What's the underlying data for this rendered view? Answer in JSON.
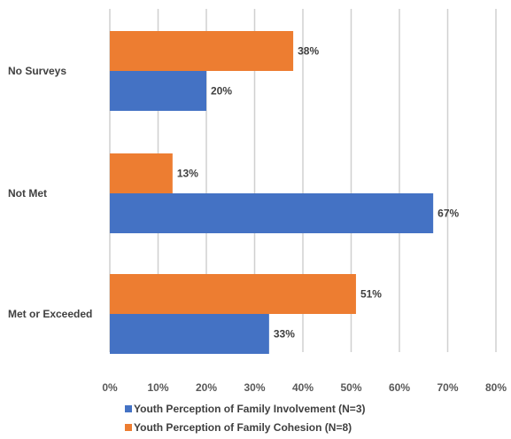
{
  "chart_data": {
    "type": "bar",
    "orientation": "horizontal",
    "title": "",
    "xlabel": "",
    "ylabel": "",
    "categories": [
      "No Surveys",
      "Not Met",
      "Met or Exceeded"
    ],
    "series": [
      {
        "name": "Youth Perception of Family Cohesion (N=8)",
        "values": [
          38,
          13,
          51
        ],
        "color": "#ED7D31"
      },
      {
        "name": "Youth Perception of Family Involvement (N=3)",
        "values": [
          20,
          67,
          33
        ],
        "color": "#4472C4"
      }
    ],
    "legend_order": [
      1,
      0
    ],
    "xlim": [
      0,
      80
    ],
    "ticks": [
      "0%",
      "10%",
      "20%",
      "30%",
      "40%",
      "50%",
      "60%",
      "70%",
      "80%"
    ],
    "value_suffix": "%",
    "grid": "vertical",
    "legend_position": "bottom-center"
  }
}
